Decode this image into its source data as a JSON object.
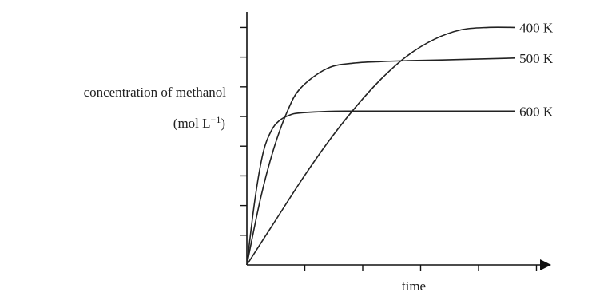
{
  "chart_data": {
    "type": "line",
    "title": "",
    "ylabel": "concentration of methanol",
    "ylabel_unit": {
      "base": "(mol L",
      "sup": "−1",
      "close": ")"
    },
    "xlabel": "time",
    "x_ticks_count": 5,
    "y_ticks_count": 8,
    "xlim": [
      0,
      5.4
    ],
    "ylim": [
      0,
      8.2
    ],
    "grid": false,
    "series": [
      {
        "name": "400 K",
        "x": [
          0,
          0.5,
          1.0,
          1.5,
          2.0,
          2.5,
          3.0,
          3.5,
          4.0,
          4.5,
          5.0
        ],
        "y": [
          0,
          1.4,
          2.8,
          4.1,
          5.25,
          6.25,
          7.05,
          7.6,
          7.92,
          8.0,
          8.0
        ]
      },
      {
        "name": "500 K",
        "x": [
          0,
          0.25,
          0.5,
          0.75,
          1.0,
          1.5,
          2.0,
          2.5,
          3.0,
          4.0,
          5.0
        ],
        "y": [
          0,
          2.2,
          3.9,
          5.15,
          5.95,
          6.62,
          6.8,
          6.85,
          6.88,
          6.92,
          6.97
        ]
      },
      {
        "name": "600 K",
        "x": [
          0,
          0.15,
          0.3,
          0.45,
          0.6,
          0.8,
          1.0,
          1.5,
          2.0,
          3.0,
          4.0,
          5.0
        ],
        "y": [
          0,
          2.2,
          3.75,
          4.5,
          4.85,
          5.05,
          5.12,
          5.17,
          5.18,
          5.18,
          5.18,
          5.18
        ]
      }
    ]
  },
  "colors": {
    "line": "#222222",
    "axis": "#111111"
  }
}
